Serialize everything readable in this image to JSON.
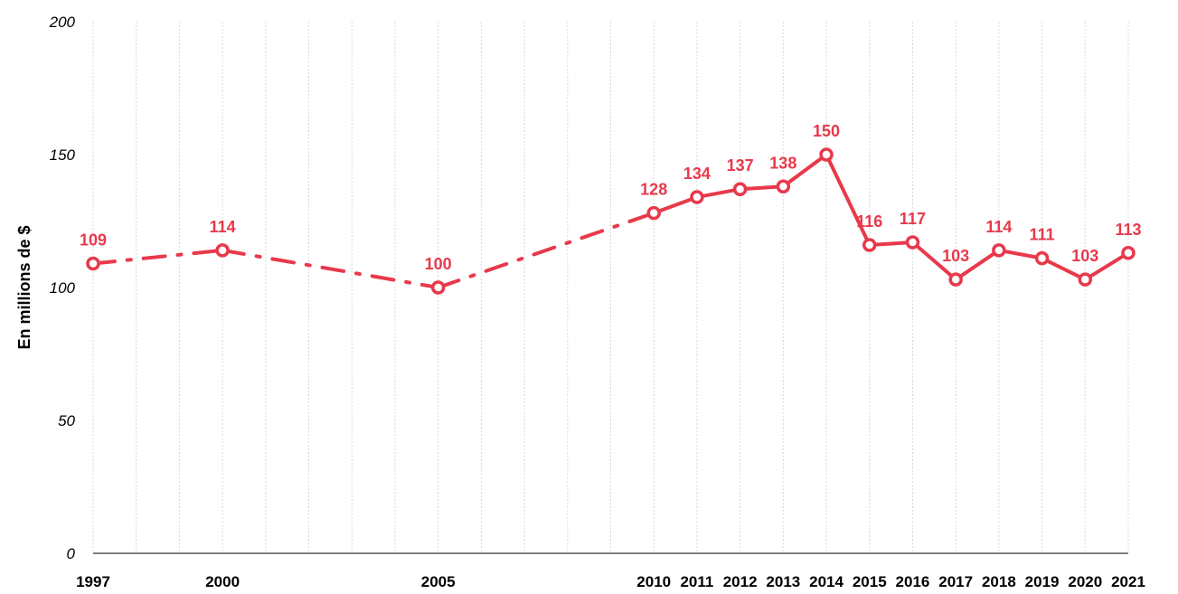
{
  "chart_data": {
    "type": "line",
    "title": "",
    "xlabel": "",
    "ylabel": "En millions de $",
    "ylim": [
      0,
      200
    ],
    "yticks": [
      0,
      50,
      100,
      150,
      200
    ],
    "grid": "vertical",
    "legend": "none",
    "color": "#e8394b",
    "x": [
      "1997",
      "2000",
      "2005",
      "2010",
      "2011",
      "2012",
      "2013",
      "2014",
      "2015",
      "2016",
      "2017",
      "2018",
      "2019",
      "2020",
      "2021"
    ],
    "values": [
      109,
      114,
      100,
      128,
      134,
      137,
      138,
      150,
      116,
      117,
      103,
      114,
      111,
      103,
      113
    ],
    "dashed_segments_until": "2010"
  }
}
